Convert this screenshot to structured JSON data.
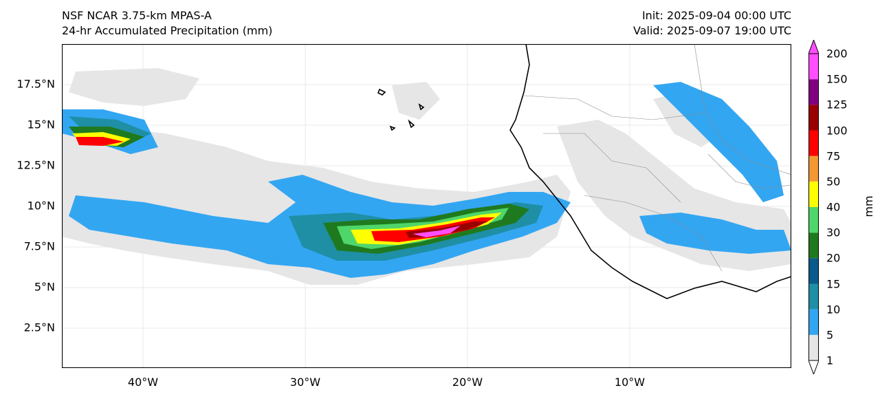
{
  "header": {
    "left_line1": "NSF NCAR 3.75-km MPAS-A",
    "left_line2": "24-hr Accumulated Precipitation (mm)",
    "right_line1": "Init: 2025-09-04 00:00 UTC",
    "right_line2": "Valid: 2025-09-07 19:00 UTC"
  },
  "axes": {
    "lat_labels": [
      "17.5°N",
      "15°N",
      "12.5°N",
      "10°N",
      "7.5°N",
      "5°N",
      "2.5°N"
    ],
    "lon_labels": [
      "40°W",
      "30°W",
      "20°W",
      "10°W"
    ]
  },
  "colorbar": {
    "unit": "mm",
    "levels": [
      "1",
      "5",
      "10",
      "15",
      "20",
      "30",
      "40",
      "50",
      "75",
      "100",
      "125",
      "150",
      "200"
    ],
    "colors": [
      "#e6e6e6",
      "#33a6f2",
      "#1f8fa6",
      "#0a5a8c",
      "#1f7a1f",
      "#4fd66b",
      "#ffff00",
      "#f29933",
      "#ff0000",
      "#990000",
      "#800080",
      "#ff4dff"
    ]
  }
}
